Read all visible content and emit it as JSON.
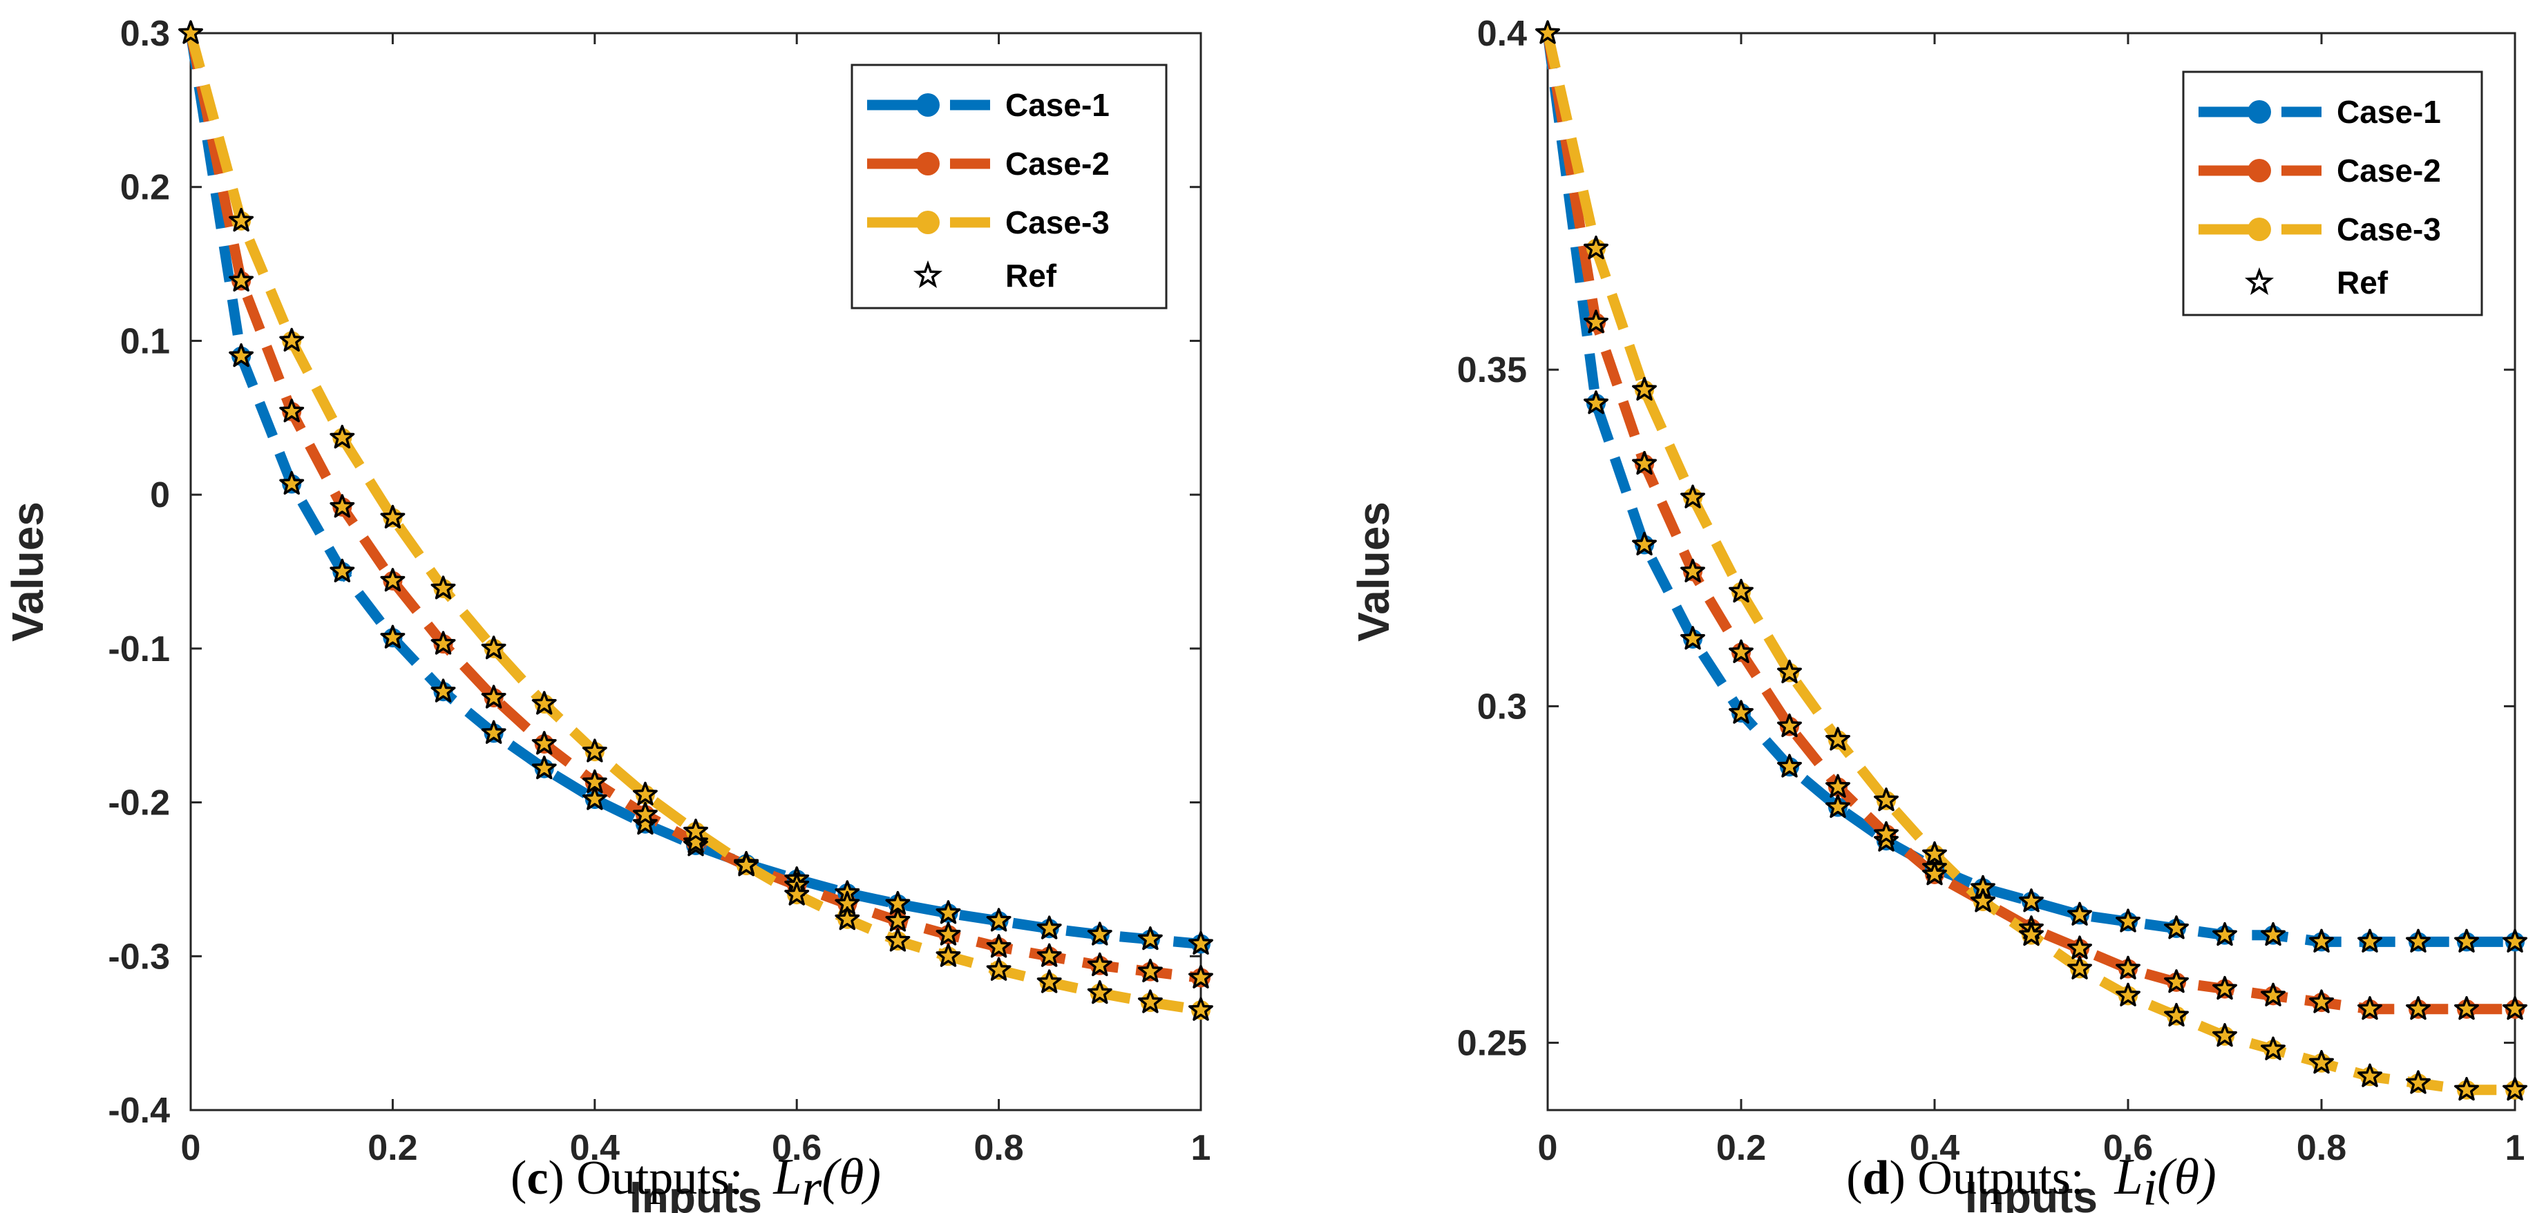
{
  "colors": {
    "case1": "#0072BD",
    "case2": "#D95319",
    "case3": "#EDB120",
    "ref": "#000000",
    "axes": "#262626"
  },
  "chart_data": [
    {
      "type": "line",
      "xlabel": "Inputs",
      "ylabel": "Values",
      "xlim": [
        0,
        1
      ],
      "ylim": [
        -0.4,
        0.3
      ],
      "xticks": [
        0,
        0.2,
        0.4,
        0.6,
        0.8,
        1
      ],
      "xtick_labels": [
        "0",
        "0.2",
        "0.4",
        "0.6",
        "0.8",
        "1"
      ],
      "yticks": [
        -0.4,
        -0.3,
        -0.2,
        -0.1,
        0,
        0.1,
        0.2,
        0.3
      ],
      "ytick_labels": [
        "-0.4",
        "-0.3",
        "-0.2",
        "-0.1",
        "0",
        "0.1",
        "0.2",
        "0.3"
      ],
      "grid": false,
      "legend_position": "top-right",
      "caption_letter": "c",
      "caption_text": " Outputs:",
      "caption_symbol": "L",
      "caption_subscript": "r",
      "caption_arg": "(θ)",
      "x": [
        0,
        0.05,
        0.1,
        0.15,
        0.2,
        0.25,
        0.3,
        0.35,
        0.4,
        0.45,
        0.5,
        0.55,
        0.6,
        0.65,
        0.7,
        0.75,
        0.8,
        0.85,
        0.9,
        0.95,
        1
      ],
      "series": [
        {
          "name": "Case-1",
          "values": [
            0.3,
            0.09,
            0.007,
            -0.05,
            -0.093,
            -0.128,
            -0.155,
            -0.178,
            -0.198,
            -0.214,
            -0.228,
            -0.24,
            -0.25,
            -0.259,
            -0.266,
            -0.272,
            -0.277,
            -0.282,
            -0.286,
            -0.289,
            -0.292
          ]
        },
        {
          "name": "Case-2",
          "values": [
            0.3,
            0.139,
            0.054,
            -0.008,
            -0.056,
            -0.097,
            -0.132,
            -0.162,
            -0.187,
            -0.208,
            -0.226,
            -0.241,
            -0.254,
            -0.266,
            -0.277,
            -0.286,
            -0.294,
            -0.3,
            -0.306,
            -0.31,
            -0.314
          ]
        },
        {
          "name": "Case-3",
          "values": [
            0.3,
            0.178,
            0.1,
            0.037,
            -0.015,
            -0.061,
            -0.1,
            -0.136,
            -0.167,
            -0.195,
            -0.219,
            -0.241,
            -0.26,
            -0.276,
            -0.29,
            -0.3,
            -0.309,
            -0.317,
            -0.324,
            -0.33,
            -0.335
          ]
        }
      ],
      "ref_name": "Ref"
    },
    {
      "type": "line",
      "xlabel": "Inputs",
      "ylabel": "Values",
      "xlim": [
        0,
        1
      ],
      "ylim": [
        0.24,
        0.4
      ],
      "xticks": [
        0,
        0.2,
        0.4,
        0.6,
        0.8,
        1
      ],
      "xtick_labels": [
        "0",
        "0.2",
        "0.4",
        "0.6",
        "0.8",
        "1"
      ],
      "yticks": [
        0.25,
        0.3,
        0.35,
        0.4
      ],
      "ytick_labels": [
        "0.25",
        "0.3",
        "0.35",
        "0.4"
      ],
      "grid": false,
      "legend_position": "top-right",
      "caption_letter": "d",
      "caption_text": " Outputs:",
      "caption_symbol": "L",
      "caption_subscript": "i",
      "caption_arg": "(θ)",
      "x": [
        0,
        0.05,
        0.1,
        0.15,
        0.2,
        0.25,
        0.3,
        0.35,
        0.4,
        0.45,
        0.5,
        0.55,
        0.6,
        0.65,
        0.7,
        0.75,
        0.8,
        0.85,
        0.9,
        0.95,
        1
      ],
      "series": [
        {
          "name": "Case-1",
          "values": [
            0.4,
            0.345,
            0.324,
            0.31,
            0.299,
            0.291,
            0.285,
            0.28,
            0.276,
            0.273,
            0.271,
            0.269,
            0.268,
            0.267,
            0.266,
            0.266,
            0.265,
            0.265,
            0.265,
            0.265,
            0.265
          ]
        },
        {
          "name": "Case-2",
          "values": [
            0.4,
            0.357,
            0.336,
            0.32,
            0.308,
            0.297,
            0.288,
            0.281,
            0.275,
            0.271,
            0.267,
            0.264,
            0.261,
            0.259,
            0.258,
            0.257,
            0.256,
            0.255,
            0.255,
            0.255,
            0.255
          ]
        },
        {
          "name": "Case-3",
          "values": [
            0.4,
            0.368,
            0.347,
            0.331,
            0.317,
            0.305,
            0.295,
            0.286,
            0.278,
            0.271,
            0.266,
            0.261,
            0.257,
            0.254,
            0.251,
            0.249,
            0.247,
            0.245,
            0.244,
            0.243,
            0.243
          ]
        }
      ],
      "ref_name": "Ref"
    }
  ]
}
